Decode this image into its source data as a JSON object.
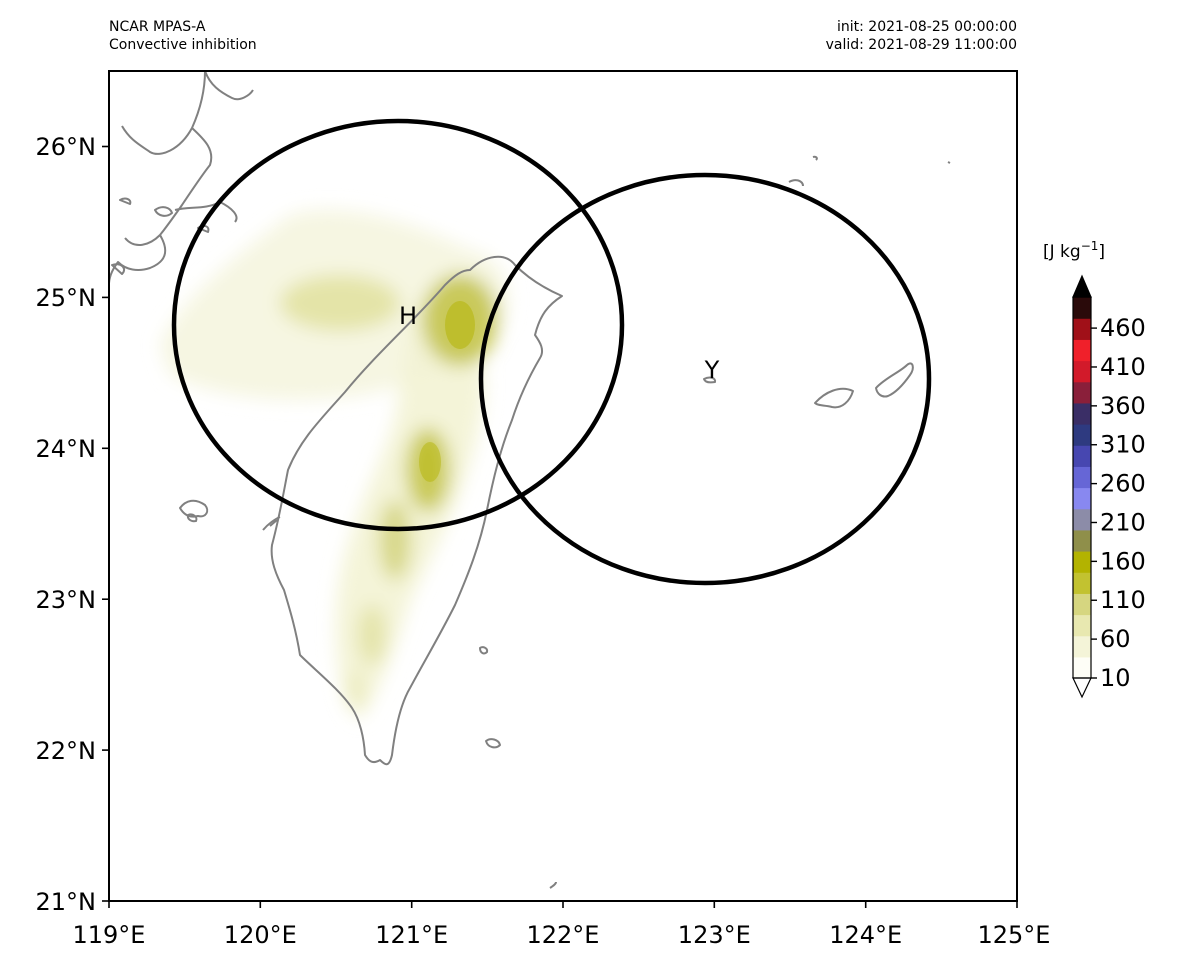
{
  "header": {
    "model": "NCAR MPAS-A",
    "field": "Convective inhibition",
    "init": "init: 2021-08-25 00:00:00",
    "valid": "valid: 2021-08-29 11:00:00"
  },
  "map": {
    "lon_range": [
      119,
      125
    ],
    "lat_range": [
      21,
      26.5
    ],
    "lon_ticks": [
      "119°E",
      "120°E",
      "121°E",
      "122°E",
      "123°E",
      "124°E",
      "125°E"
    ],
    "lat_ticks": [
      "21°N",
      "22°N",
      "23°N",
      "24°N",
      "25°N",
      "26°N"
    ],
    "coastline_color": "#808080",
    "field_color": "#b5b500",
    "markers": [
      {
        "label": "H",
        "lon": 121.0,
        "lat": 24.85
      },
      {
        "label": "Y",
        "lon": 122.95,
        "lat": 24.5
      }
    ],
    "rings": [
      {
        "center_lon": 120.9,
        "center_lat": 24.83,
        "radius_deg_lat": 1.36
      },
      {
        "center_lon": 122.93,
        "center_lat": 24.47,
        "radius_deg_lat": 1.36
      }
    ]
  },
  "colorbar": {
    "unit_prefix": "[J kg",
    "unit_exp": "−1",
    "unit_suffix": "]",
    "ticks": [
      "10",
      "60",
      "110",
      "160",
      "210",
      "260",
      "310",
      "360",
      "410",
      "460"
    ],
    "range": [
      10,
      500
    ],
    "extend": "both",
    "colors": [
      "#fefef7",
      "#f4f4d8",
      "#e8e8b0",
      "#d6d680",
      "#c2c230",
      "#b3b300",
      "#8f8f4a",
      "#8c8ca8",
      "#8888f0",
      "#6666d6",
      "#4747b0",
      "#2e3a80",
      "#3a2e66",
      "#8a1f3a",
      "#d21a2a",
      "#f0202a",
      "#a01018",
      "#2a0a0a"
    ]
  }
}
